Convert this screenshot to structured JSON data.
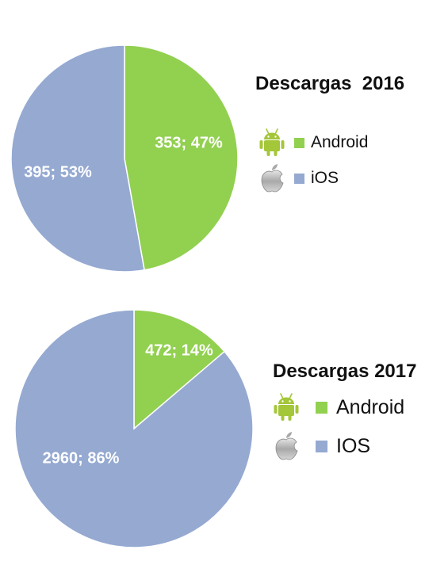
{
  "chart_data": [
    {
      "type": "pie",
      "title": "Descargas  2016",
      "slices": [
        {
          "name": "Android",
          "value": 353,
          "percent": 47,
          "label": "353; 47%",
          "color": "#92d050"
        },
        {
          "name": "iOS",
          "value": 395,
          "percent": 53,
          "label": "395; 53%",
          "color": "#95a9d1"
        }
      ],
      "legend": [
        {
          "label": "Android",
          "color": "#92d050",
          "icon": "android-icon"
        },
        {
          "label": "iOS",
          "color": "#95a9d1",
          "icon": "apple-icon"
        }
      ]
    },
    {
      "type": "pie",
      "title": "Descargas 2017",
      "slices": [
        {
          "name": "Android",
          "value": 472,
          "percent": 14,
          "label": "472; 14%",
          "color": "#92d050"
        },
        {
          "name": "IOS",
          "value": 2960,
          "percent": 86,
          "label": "2960; 86%",
          "color": "#95a9d1"
        }
      ],
      "legend": [
        {
          "label": "Android",
          "color": "#92d050",
          "icon": "android-icon"
        },
        {
          "label": "IOS",
          "color": "#95a9d1",
          "icon": "apple-icon"
        }
      ]
    }
  ]
}
